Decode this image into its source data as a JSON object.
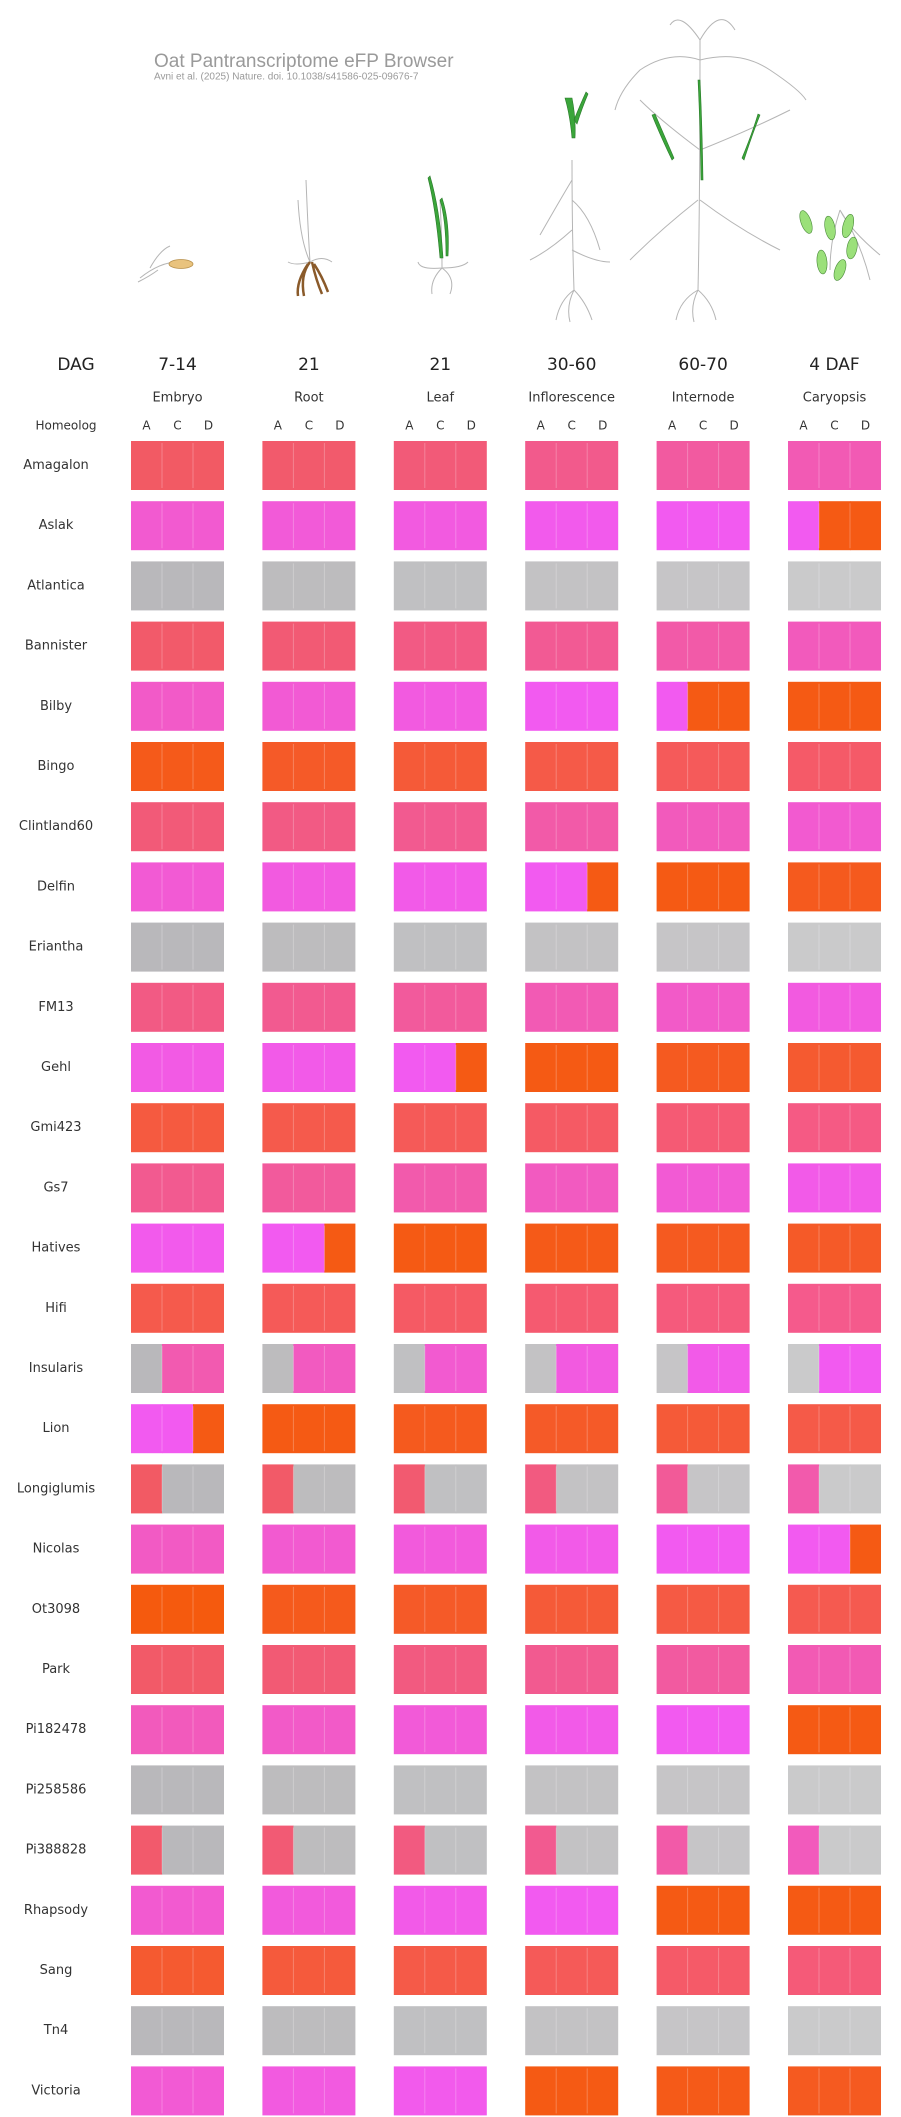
{
  "header": {
    "title": "Oat Pantranscriptome eFP Browser",
    "subtitle": "Avni et al. (2025) Nature. doi. 10.1038/s41586-025-09676-7"
  },
  "stage_label": "DAG",
  "homeolog_label": "Homeolog",
  "tissues": [
    {
      "stage": "7-14",
      "name": "Embryo",
      "homeologs": [
        "A",
        "C",
        "D"
      ]
    },
    {
      "stage": "21",
      "name": "Root",
      "homeologs": [
        "A",
        "C",
        "D"
      ]
    },
    {
      "stage": "21",
      "name": "Leaf",
      "homeologs": [
        "A",
        "C",
        "D"
      ]
    },
    {
      "stage": "30-60",
      "name": "Inflorescence",
      "homeologs": [
        "A",
        "C",
        "D"
      ]
    },
    {
      "stage": "60-70",
      "name": "Internode",
      "homeologs": [
        "A",
        "C",
        "D"
      ]
    },
    {
      "stage": "4 DAF",
      "name": "Caryopsis",
      "homeologs": [
        "A",
        "C",
        "D"
      ]
    }
  ],
  "rows": [
    {
      "name": "Amagalon",
      "cells": [
        "#f25a64",
        "#f25a6c",
        "#f25a78",
        "#f25a8c",
        "#f25aa0",
        "#f25ab4"
      ]
    },
    {
      "name": "Aslak",
      "cells": [
        "#f25ad0",
        "#f25ad8",
        "#f25ae0",
        "#f25aec",
        "#f25af0",
        [
          "#f25af0",
          "#f55a14",
          "#f55a14"
        ]
      ]
    },
    {
      "name": "Atlantica",
      "cells": [
        "#b9b8bb",
        "#bdbcbe",
        "#c0c0c2",
        "#c3c2c4",
        "#c6c5c7",
        "#cacacb"
      ]
    },
    {
      "name": "Bannister",
      "cells": [
        "#f25a6a",
        "#f25a74",
        "#f25a84",
        "#f25a94",
        "#f25aa8",
        "#f25abc"
      ]
    },
    {
      "name": "Bilby",
      "cells": [
        "#f25ac8",
        "#f25ad4",
        "#f25ae0",
        "#f25af0",
        [
          "#f25af0",
          "#f55a14",
          "#f55a14"
        ],
        "#f55a14"
      ]
    },
    {
      "name": "Bingo",
      "cells": [
        "#f55a1a",
        "#f55a28",
        "#f55a38",
        "#f55a48",
        "#f55a5a",
        "#f55a68"
      ]
    },
    {
      "name": "Clintland60",
      "cells": [
        "#f25a78",
        "#f25a84",
        "#f25a90",
        "#f25aa8",
        "#f25abc",
        "#f25ad0"
      ]
    },
    {
      "name": "Delfin",
      "cells": [
        "#f25ad4",
        "#f25ae0",
        "#f25ae8",
        [
          "#f25af0",
          "#f25af0",
          "#f55a14"
        ],
        "#f55a14",
        "#f55a1e"
      ]
    },
    {
      "name": "Eriantha",
      "cells": [
        "#b9b8bb",
        "#bdbcbe",
        "#c0c0c2",
        "#c3c2c4",
        "#c6c5c7",
        "#cacacb"
      ]
    },
    {
      "name": "FM13",
      "cells": [
        "#f25a84",
        "#f25a90",
        "#f25a9c",
        "#f25ab4",
        "#f25ac8",
        "#f25ae0"
      ]
    },
    {
      "name": "Gehl",
      "cells": [
        "#f25ae4",
        "#f25ae8",
        [
          "#f25af0",
          "#f25af0",
          "#f55a14"
        ],
        "#f55a14",
        "#f55a20",
        "#f55a30"
      ]
    },
    {
      "name": "Gmi423",
      "cells": [
        "#f55a40",
        "#f55a4c",
        "#f55a58",
        "#f55a64",
        "#f55a74",
        "#f55a84"
      ]
    },
    {
      "name": "Gs7",
      "cells": [
        "#f25a90",
        "#f25a9c",
        "#f25aac",
        "#f25ac0",
        "#f25ad4",
        "#f25ae8"
      ]
    },
    {
      "name": "Hatives",
      "cells": [
        "#f25aec",
        [
          "#f25af0",
          "#f25af0",
          "#f55a14"
        ],
        "#f55a14",
        "#f55a18",
        "#f55a20",
        "#f55a28"
      ]
    },
    {
      "name": "Hifi",
      "cells": [
        "#f55a4c",
        "#f55a58",
        "#f55a64",
        "#f55a70",
        "#f55a7c",
        "#f55a8c"
      ]
    },
    {
      "name": "Insularis",
      "cells": [
        [
          "#b9b8bb",
          "#f25ab0",
          "#f25ab0"
        ],
        [
          "#bdbcbe",
          "#f25ac0",
          "#f25ac0"
        ],
        [
          "#c0c0c2",
          "#f25ad0",
          "#f25ad0"
        ],
        [
          "#c3c2c4",
          "#f25ae0",
          "#f25ae0"
        ],
        [
          "#c6c5c7",
          "#f25ae8",
          "#f25ae8"
        ],
        [
          "#cacacb",
          "#f25af0",
          "#f25af0"
        ]
      ]
    },
    {
      "name": "Lion",
      "cells": [
        [
          "#f25af0",
          "#f25af0",
          "#f55a14"
        ],
        "#f55a14",
        "#f55a1e",
        "#f55a28",
        "#f55a38",
        "#f55a48"
      ]
    },
    {
      "name": "Longiglumis",
      "cells": [
        [
          "#f25a64",
          "#b9b8bb",
          "#b9b8bb"
        ],
        [
          "#f25a68",
          "#bdbcbe",
          "#bdbcbe"
        ],
        [
          "#f25a70",
          "#c0c0c2",
          "#c0c0c2"
        ],
        [
          "#f25a80",
          "#c3c2c4",
          "#c3c2c4"
        ],
        [
          "#f25a98",
          "#c6c5c7",
          "#c6c5c7"
        ],
        [
          "#f25aac",
          "#cacacb",
          "#cacacb"
        ]
      ]
    },
    {
      "name": "Nicolas",
      "cells": [
        "#f25ac4",
        "#f25ad0",
        "#f25adc",
        "#f25ae8",
        "#f25af0",
        [
          "#f25af0",
          "#f25af0",
          "#f55a14"
        ]
      ]
    },
    {
      "name": "Ot3098",
      "cells": [
        "#f55a0e",
        "#f55a1c",
        "#f55a28",
        "#f55a38",
        "#f55a44",
        "#f55a50"
      ]
    },
    {
      "name": "Park",
      "cells": [
        "#f25a68",
        "#f25a74",
        "#f25a80",
        "#f25a90",
        "#f25aa0",
        "#f25ab4"
      ]
    },
    {
      "name": "Pi182478",
      "cells": [
        "#f25abc",
        "#f25ac8",
        "#f25ad8",
        "#f25ae8",
        "#f25af0",
        "#f55a14"
      ]
    },
    {
      "name": "Pi258586",
      "cells": [
        "#b9b8bb",
        "#bdbcbe",
        "#c0c0c2",
        "#c3c2c4",
        "#c6c5c7",
        "#cacacb"
      ]
    },
    {
      "name": "Pi388828",
      "cells": [
        [
          "#f25a6c",
          "#b9b8bb",
          "#b9b8bb"
        ],
        [
          "#f25a74",
          "#bdbcbe",
          "#bdbcbe"
        ],
        [
          "#f25a80",
          "#c0c0c2",
          "#c0c0c2"
        ],
        [
          "#f25a90",
          "#c3c2c4",
          "#c3c2c4"
        ],
        [
          "#f25aa8",
          "#c6c5c7",
          "#c6c5c7"
        ],
        [
          "#f25abc",
          "#cacacb",
          "#cacacb"
        ]
      ]
    },
    {
      "name": "Rhapsody",
      "cells": [
        "#f25ad0",
        "#f25adc",
        "#f25ae8",
        "#f25af0",
        "#f55a14",
        "#f55a14"
      ]
    },
    {
      "name": "Sang",
      "cells": [
        "#f55a30",
        "#f55a3c",
        "#f55a48",
        "#f55a58",
        "#f55a68",
        "#f55a78"
      ]
    },
    {
      "name": "Tn4",
      "cells": [
        "#b9b8bb",
        "#bdbcbe",
        "#c0c0c2",
        "#c3c2c4",
        "#c6c5c7",
        "#cacacb"
      ]
    },
    {
      "name": "Victoria",
      "cells": [
        "#f25ad4",
        "#f25ae0",
        "#f25aec",
        "#f55a14",
        "#f55a18",
        "#f55a20"
      ]
    }
  ]
}
